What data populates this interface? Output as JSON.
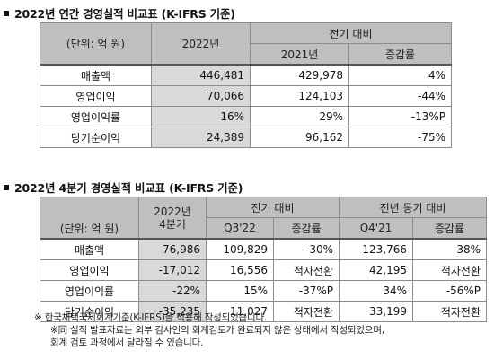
{
  "section1": {
    "title": "2022년 연간 경영실적 비교표 (K-IFRS 기준)",
    "unit_label": "(단위: 억 원)",
    "col_year": "2022년",
    "col_compare": "전기 대비",
    "col_prev": "2021년",
    "col_change": "증감률",
    "rows": [
      {
        "label": "매출액",
        "current": "446,481",
        "prev": "429,978",
        "change": "4%"
      },
      {
        "label": "영업이익",
        "current": "70,066",
        "prev": "124,103",
        "change": "-44%"
      },
      {
        "label": "영업이익률",
        "current": "16%",
        "prev": "29%",
        "change": "-13%P"
      },
      {
        "label": "당기순이익",
        "current": "24,389",
        "prev": "96,162",
        "change": "-75%"
      }
    ]
  },
  "section2": {
    "title": "2022년 4분기 경영실적 비교표 (K-IFRS 기준)",
    "unit_label": "(단위: 억 원)",
    "col_quarter_line1": "2022년",
    "col_quarter_line2": "4분기",
    "col_compare_prev": "전기 대비",
    "col_compare_yoy": "전년 동기 대비",
    "col_q3": "Q3'22",
    "col_change1": "증감률",
    "col_q4": "Q4'21",
    "col_change2": "증감률",
    "rows": [
      {
        "label": "매출액",
        "current": "76,986",
        "q3": "109,829",
        "change1": "-30%",
        "q4": "123,766",
        "change2": "-38%"
      },
      {
        "label": "영업이익",
        "current": "-17,012",
        "q3": "16,556",
        "change1": "적자전환",
        "q4": "42,195",
        "change2": "적자전환"
      },
      {
        "label": "영업이익률",
        "current": "-22%",
        "q3": "15%",
        "change1": "-37%P",
        "q4": "34%",
        "change2": "-56%P"
      },
      {
        "label": "당기순이익",
        "current": "-35,235",
        "q3": "11,027",
        "change1": "적자전환",
        "q4": "33,199",
        "change2": "적자전환"
      }
    ]
  },
  "notes": {
    "line1": "※ 한국채택국제회계기준(K-IFRS)을 적용해 작성되었습니다.",
    "line2": "※同 실적 발표자료는 외부 감사인의 회계검토가 완료되지 않은 상태에서 작성되었으며,",
    "line3": "회계 검토 과정에서 달라질 수 있습니다."
  }
}
